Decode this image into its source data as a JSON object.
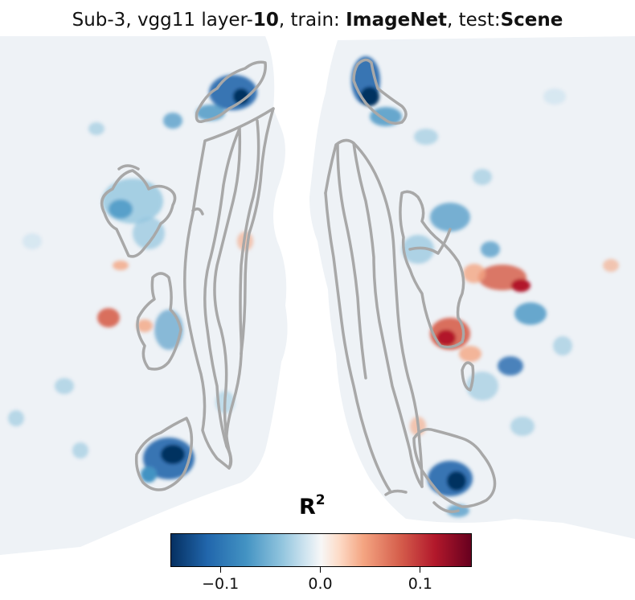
{
  "title": {
    "part1": "Sub-3, vgg11 layer-",
    "layer": "10",
    "part2": ", train: ",
    "train": "ImageNet",
    "part3": ", test:",
    "test": "Scene"
  },
  "colorbar": {
    "label": "R",
    "label_sup": "2",
    "min": -0.15,
    "max": 0.15,
    "colormap": "RdBu_r",
    "ticks": [
      {
        "value": -0.1,
        "label": "−0.1"
      },
      {
        "value": 0.0,
        "label": "0.0"
      },
      {
        "value": 0.1,
        "label": "0.1"
      }
    ]
  },
  "colors": {
    "roi_outline": "#a8a8a8",
    "background_cortex": "#eef2f6",
    "negative": "#2166ac",
    "positive": "#d6604d"
  }
}
